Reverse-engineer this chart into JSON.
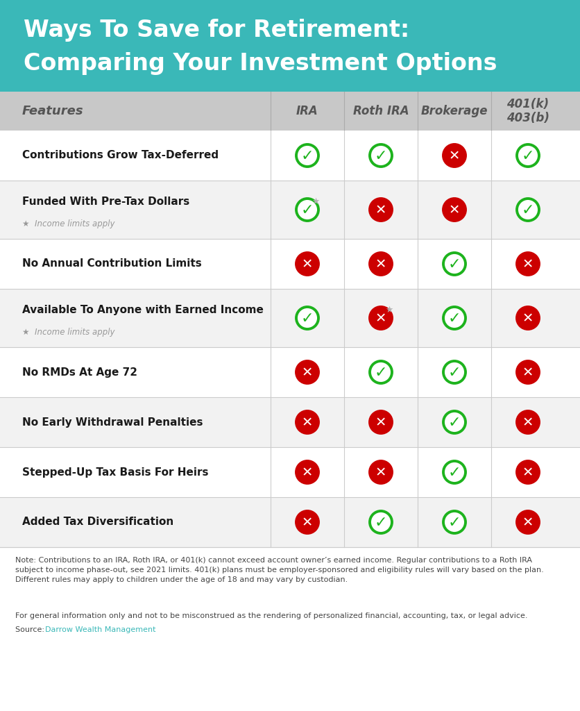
{
  "title_line1": "Ways To Save for Retirement:",
  "title_line2": "Comparing Your Investment Options",
  "title_bg_color": "#3ab8b8",
  "title_text_color": "#ffffff",
  "header_bg_color": "#c8c8c8",
  "header_text_color": "#555555",
  "row_bg_colors": [
    "#ffffff",
    "#f2f2f2",
    "#ffffff",
    "#f2f2f2",
    "#ffffff",
    "#f2f2f2",
    "#ffffff",
    "#f2f2f2"
  ],
  "columns": [
    "Features",
    "IRA",
    "Roth IRA",
    "Brokerage",
    "401(k)\n403(b)"
  ],
  "features": [
    "Contributions Grow Tax-Deferred",
    "Funded With Pre-Tax Dollars",
    "No Annual Contribution Limits",
    "Available To Anyone with Earned Income",
    "No RMDs At Age 72",
    "No Early Withdrawal Penalties",
    "Stepped-Up Tax Basis For Heirs",
    "Added Tax Diversification"
  ],
  "feature_subtitles": [
    "",
    "★  Income limits apply",
    "",
    "★  Income limits apply",
    "",
    "",
    "",
    ""
  ],
  "data": [
    [
      1,
      1,
      0,
      1
    ],
    [
      1,
      0,
      0,
      1
    ],
    [
      0,
      0,
      1,
      0
    ],
    [
      1,
      0,
      1,
      0
    ],
    [
      0,
      1,
      1,
      0
    ],
    [
      0,
      0,
      1,
      0
    ],
    [
      0,
      0,
      1,
      0
    ],
    [
      0,
      1,
      1,
      0
    ]
  ],
  "star_positions": [
    [
      false,
      false,
      false,
      false
    ],
    [
      true,
      false,
      false,
      false
    ],
    [
      false,
      false,
      false,
      false
    ],
    [
      false,
      true,
      false,
      false
    ],
    [
      false,
      false,
      false,
      false
    ],
    [
      false,
      false,
      false,
      false
    ],
    [
      false,
      false,
      false,
      false
    ],
    [
      false,
      false,
      false,
      false
    ]
  ],
  "check_color": "#1db31d",
  "cross_color": "#cc0000",
  "note_text": "Note: Contributions to an IRA, Roth IRA, or 401(k) cannot exceed account owner’s earned income. Regular contributions to a Roth IRA subject to income phase-out, see 2021 limits. 401(k) plans must be employer-sponsored and eligibility rules will vary based on the plan. Different rules may apply to children under the age of 18 and may vary by custodian.",
  "disclaimer_text": "For general information only and not to be misconstrued as the rendering of personalized financial, accounting, tax, or legal advice.",
  "source_prefix": "Source: ",
  "source_link": "Darrow Wealth Management",
  "source_link_color": "#3ab8b8"
}
